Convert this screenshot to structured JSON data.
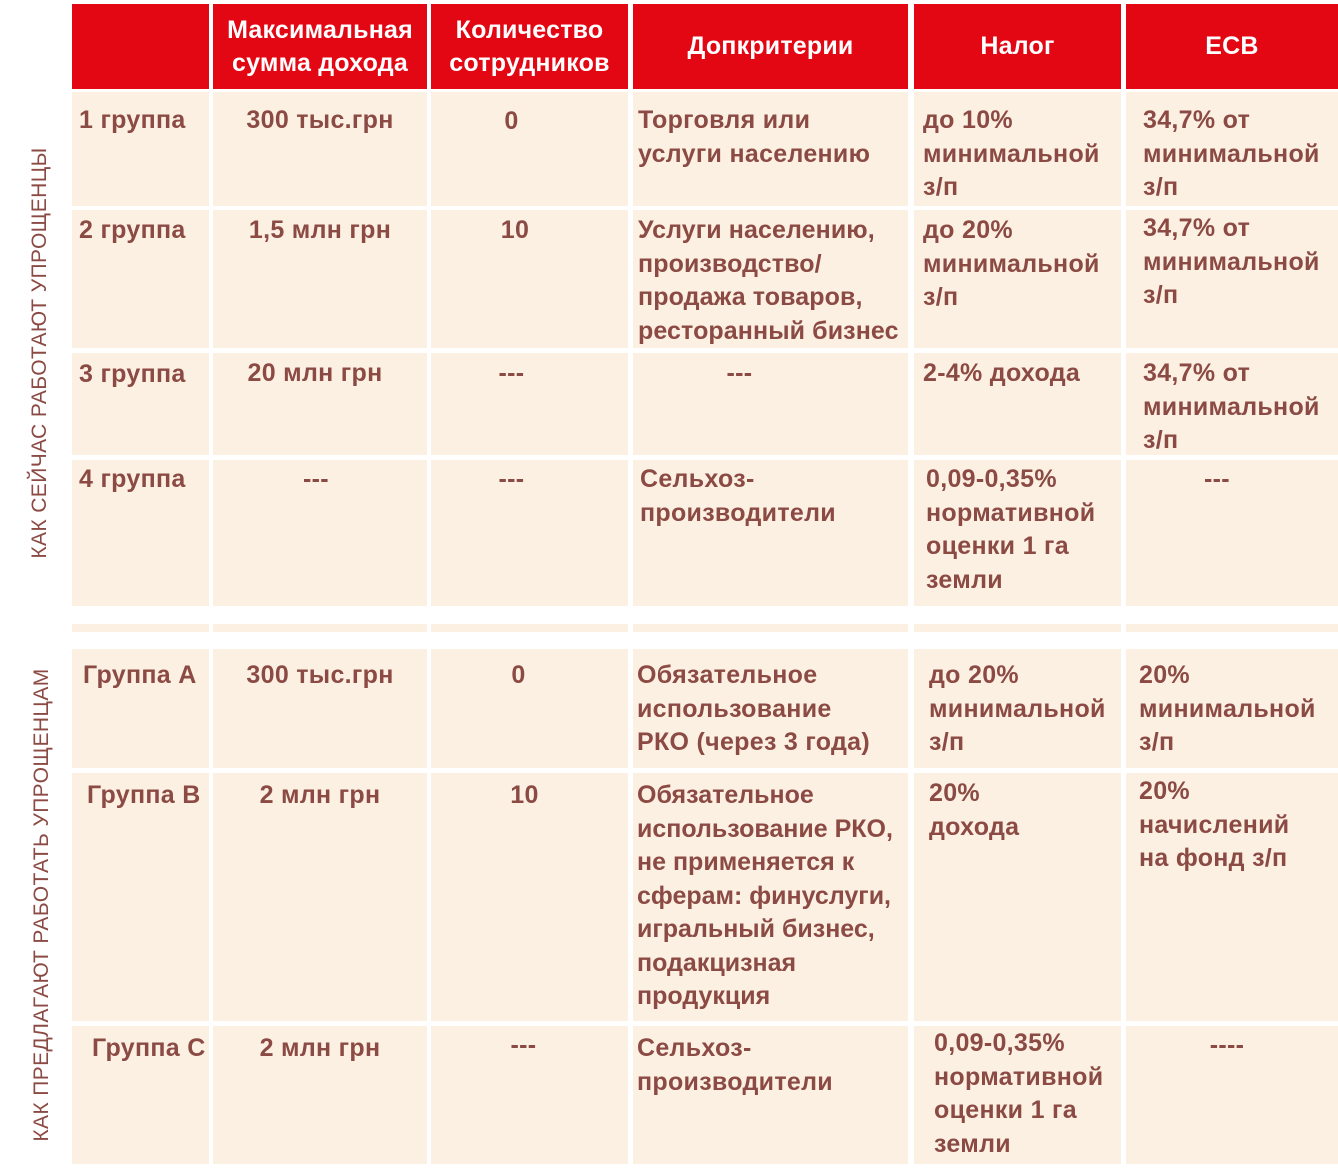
{
  "header": {
    "col_income": "Максимальная\nсумма дохода",
    "col_employees": "Количество\nсотрудников",
    "col_criteria": "Допкритерии",
    "col_tax": "Налог",
    "col_esv": "ЕСВ"
  },
  "current_label": "КАК СЕЙЧАС РАБОТАЮТ УПРОЩЕНЦЫ",
  "proposed_label": "КАК ПРЕДЛАГАЮТ РАБОТАТЬ УПРОЩЕНЦАМ",
  "current": [
    {
      "group": "1 группа",
      "income": "300 тыс.грн",
      "employees": "0",
      "criteria": "Торговля или\nуслуги населению",
      "tax": "до 10%\nминимальной\nз/п",
      "esv": "34,7% от\nминимальной\nз/п"
    },
    {
      "group": "2 группа",
      "income": "1,5 млн грн",
      "employees": "10",
      "criteria": "Услуги населению,\nпроизводство/\nпродажа товаров,\nресторанный бизнес",
      "tax": "до 20%\nминимальной\nз/п",
      "esv": "34,7% от\nминимальной\nз/п"
    },
    {
      "group": "3 группа",
      "income": "20 млн грн",
      "employees": "---",
      "criteria": "---",
      "tax": "2-4% дохода",
      "esv": "34,7% от\nминимальной\nз/п"
    },
    {
      "group": "4 группа",
      "income": "---",
      "employees": "---",
      "criteria": "Сельхоз-\nпроизводители",
      "tax": "0,09-0,35%\nнормативной\nоценки 1 га\nземли",
      "esv": "---"
    }
  ],
  "proposed": [
    {
      "group": "Группа А",
      "income": "300 тыс.грн",
      "employees": "0",
      "criteria": "Обязательное\nиспользование\nРКО (через 3 года)",
      "tax": "до 20%\nминимальной\nз/п",
      "esv": "20%\nминимальной\nз/п"
    },
    {
      "group": "Группа В",
      "income": "2 млн грн",
      "employees": "10",
      "criteria": "Обязательное\nиспользование РКО,\nне применяется к\nсферам: финуслуги,\nигральный бизнес,\nподакцизная\nпродукция",
      "tax": "20%\nдохода",
      "esv": "20%\nначислений\nна фонд з/п"
    },
    {
      "group": "Группа С",
      "income": "2 млн грн",
      "employees": "---",
      "criteria": "Сельхоз-\nпроизводители",
      "tax": "0,09-0,35%\nнормативной\nоценки 1 га\nземли",
      "esv": "----"
    }
  ],
  "colors": {
    "header_bg": "#e30613",
    "header_text": "#ffffff",
    "cell_bg": "#fcf0e2",
    "cell_text": "#8b4a43"
  }
}
